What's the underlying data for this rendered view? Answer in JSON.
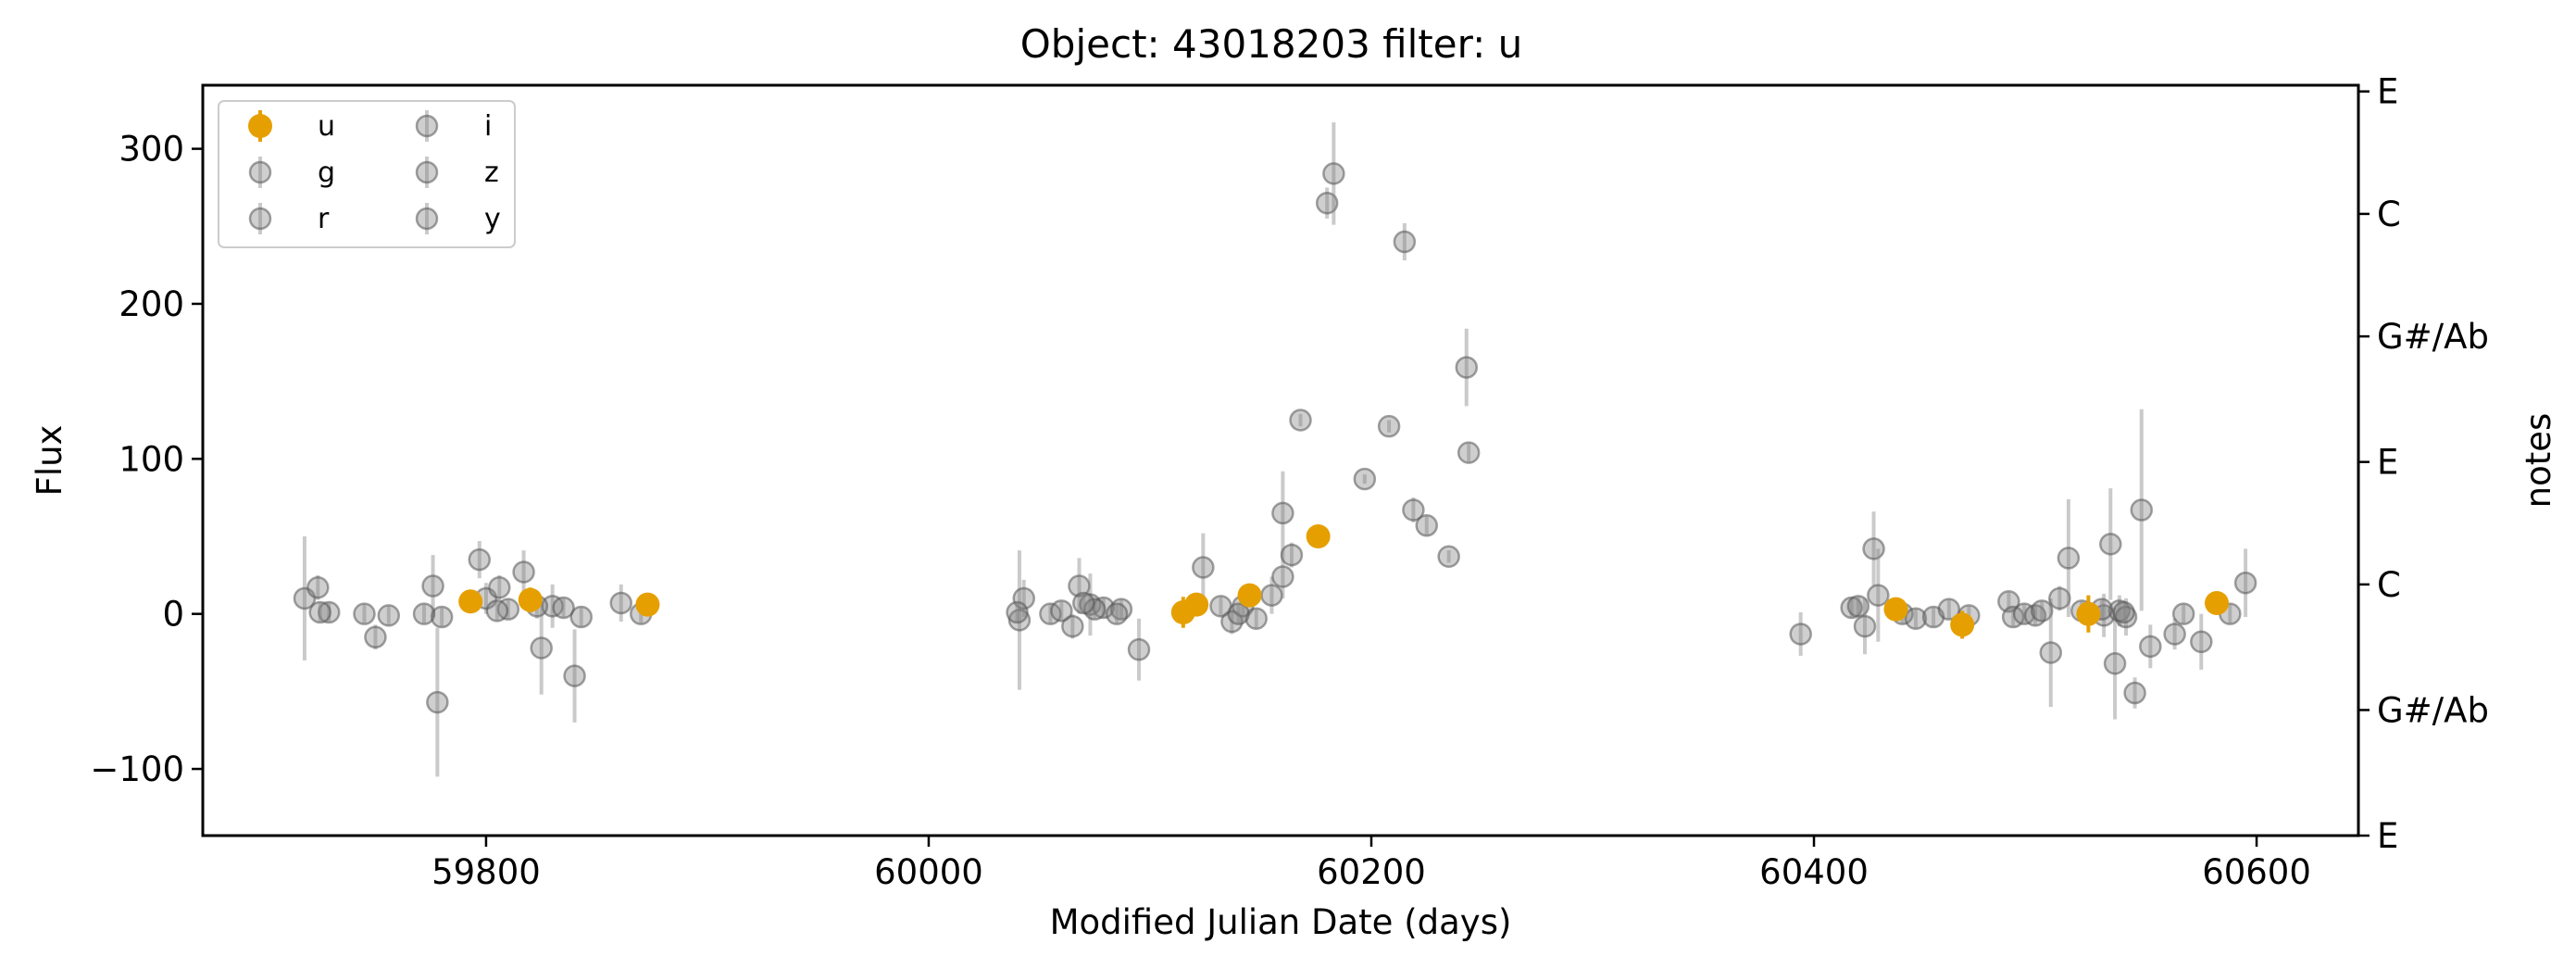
{
  "chart_data": {
    "type": "scatter",
    "title": "Object: 43018203 filter: u",
    "xlabel": "Modified Julian Date (days)",
    "ylabel": "Flux",
    "y2label": "notes",
    "xlim": [
      59672,
      60646
    ],
    "ylim": [
      -143,
      341
    ],
    "xticks": [
      59800,
      60000,
      60200,
      60400,
      60600
    ],
    "yticks": [
      -100,
      0,
      100,
      200,
      300
    ],
    "ytick_labels": [
      "−100",
      "0",
      "100",
      "200",
      "300"
    ],
    "y2ticks": [
      {
        "value": 337,
        "label": "E"
      },
      {
        "value": 258,
        "label": "C"
      },
      {
        "value": 179,
        "label": "G#/Ab"
      },
      {
        "value": 98,
        "label": "E"
      },
      {
        "value": 19,
        "label": "C"
      },
      {
        "value": -62,
        "label": "G#/Ab"
      },
      {
        "value": -143,
        "label": "E"
      }
    ],
    "grid": false,
    "legend_position": "top-left",
    "legend": [
      "u",
      "g",
      "r",
      "i",
      "z",
      "y"
    ],
    "colors": {
      "highlight": "#E69F00",
      "other": "#808080"
    },
    "series": [
      {
        "name": "u",
        "highlight": true,
        "points": [
          [
            59793,
            8,
            6
          ],
          [
            59820,
            9,
            8
          ],
          [
            59873,
            6,
            5
          ],
          [
            60115,
            1,
            10
          ],
          [
            60121,
            6,
            6
          ],
          [
            60145,
            12,
            7
          ],
          [
            60176,
            50,
            7
          ],
          [
            60437,
            3,
            6
          ],
          [
            60467,
            -7,
            9
          ],
          [
            60524,
            0,
            12
          ],
          [
            60582,
            7,
            6
          ]
        ]
      },
      {
        "name": "g",
        "highlight": false,
        "points": [
          [
            59718,
            10,
            40
          ],
          [
            59724,
            17,
            8
          ],
          [
            59729,
            1,
            6
          ],
          [
            59750,
            -15,
            8
          ],
          [
            59756,
            -1,
            6
          ],
          [
            59776,
            18,
            20
          ],
          [
            59778,
            -57,
            48
          ],
          [
            59780,
            -2,
            6
          ],
          [
            59797,
            35,
            12
          ],
          [
            59800,
            10,
            10
          ],
          [
            59806,
            17,
            8
          ],
          [
            59817,
            27,
            14
          ],
          [
            59825,
            -22,
            30
          ],
          [
            59830,
            5,
            14
          ],
          [
            59840,
            -40,
            30
          ],
          [
            59843,
            -2,
            6
          ],
          [
            59861,
            7,
            12
          ],
          [
            60041,
            -4,
            45
          ],
          [
            60043,
            10,
            12
          ],
          [
            60055,
            0,
            6
          ],
          [
            60065,
            -8,
            8
          ],
          [
            60068,
            18,
            18
          ],
          [
            60073,
            6,
            20
          ],
          [
            60079,
            4,
            6
          ],
          [
            60087,
            3,
            6
          ],
          [
            60095,
            -23,
            20
          ],
          [
            60124,
            30,
            22
          ],
          [
            60137,
            -5,
            8
          ],
          [
            60142,
            5,
            10
          ],
          [
            60148,
            -3,
            6
          ],
          [
            60155,
            12,
            12
          ],
          [
            60160,
            24,
            14
          ],
          [
            60160,
            65,
            27
          ],
          [
            60164,
            38,
            8
          ],
          [
            60168,
            125,
            4
          ],
          [
            60180,
            265,
            10
          ],
          [
            60183,
            284,
            33
          ],
          [
            60197,
            87,
            3
          ],
          [
            60208,
            121,
            4
          ],
          [
            60215,
            240,
            12
          ],
          [
            60219,
            67,
            8
          ],
          [
            60225,
            57,
            6
          ],
          [
            60235,
            37,
            4
          ],
          [
            60243,
            159,
            25
          ],
          [
            60244,
            104,
            6
          ]
        ]
      },
      {
        "name": "r",
        "highlight": false,
        "points": [
          [
            59725,
            1,
            6
          ],
          [
            59810,
            3,
            6
          ],
          [
            59823,
            5,
            8
          ],
          [
            59870,
            0,
            6
          ],
          [
            60060,
            2,
            6
          ],
          [
            60085,
            0,
            6
          ],
          [
            60132,
            5,
            6
          ],
          [
            60394,
            -13,
            14
          ],
          [
            60417,
            4,
            6
          ],
          [
            60420,
            5,
            6
          ],
          [
            60423,
            -8,
            18
          ],
          [
            60427,
            42,
            24
          ],
          [
            60429,
            12,
            30
          ],
          [
            60440,
            0,
            6
          ],
          [
            60446,
            -3,
            6
          ],
          [
            60454,
            -2,
            6
          ],
          [
            60461,
            3,
            6
          ],
          [
            60470,
            -1,
            6
          ],
          [
            60488,
            8,
            6
          ],
          [
            60490,
            -2,
            6
          ],
          [
            60495,
            0,
            6
          ],
          [
            60500,
            -1,
            6
          ]
        ]
      },
      {
        "name": "i",
        "highlight": false,
        "points": [
          [
            60503,
            2,
            6
          ],
          [
            60507,
            -25,
            35
          ],
          [
            60511,
            10,
            8
          ],
          [
            60515,
            36,
            38
          ],
          [
            60521,
            2,
            6
          ],
          [
            60531,
            -1,
            14
          ],
          [
            60534,
            45,
            36
          ],
          [
            60536,
            -32,
            36
          ],
          [
            60538,
            2,
            10
          ],
          [
            60541,
            -2,
            12
          ],
          [
            60545,
            -51,
            10
          ],
          [
            60548,
            67,
            65
          ],
          [
            60552,
            -21,
            14
          ],
          [
            60563,
            -13,
            10
          ],
          [
            60567,
            0,
            6
          ],
          [
            60575,
            -18,
            18
          ],
          [
            60588,
            0,
            6
          ],
          [
            60595,
            20,
            22
          ]
        ]
      },
      {
        "name": "z",
        "highlight": false,
        "points": [
          [
            59772,
            0,
            6
          ],
          [
            59805,
            2,
            6
          ],
          [
            60040,
            1,
            6
          ],
          [
            60075,
            3,
            6
          ],
          [
            60540,
            1,
            6
          ]
        ]
      },
      {
        "name": "y",
        "highlight": false,
        "points": [
          [
            59745,
            0,
            6
          ],
          [
            59835,
            4,
            6
          ],
          [
            60070,
            7,
            6
          ],
          [
            60140,
            0,
            6
          ],
          [
            60530,
            3,
            6
          ]
        ]
      }
    ]
  }
}
